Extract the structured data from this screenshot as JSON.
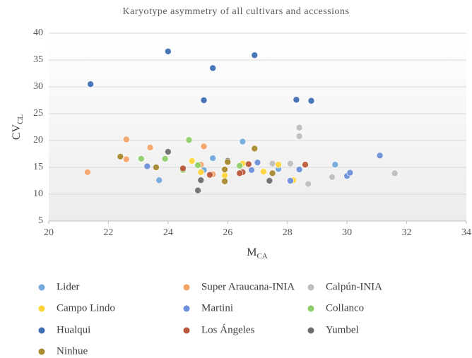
{
  "chart_data": {
    "type": "scatter",
    "title": "Karyotype asymmetry of all cultivars and accessions",
    "x_label": {
      "main": "M",
      "sub": "CA"
    },
    "y_label": {
      "main": "CV",
      "sub": "CL"
    },
    "xlim": [
      20,
      34
    ],
    "xticks": [
      20,
      22,
      24,
      26,
      28,
      30,
      32,
      34
    ],
    "ylim": [
      5,
      40
    ],
    "yticks": [
      5,
      10,
      15,
      20,
      25,
      30,
      35,
      40
    ],
    "grid": true,
    "legend": "bottom",
    "series": [
      {
        "name": "Lider",
        "color": "#73a9dc",
        "x": [
          23.7,
          25.5,
          26.5,
          27.7,
          29.6,
          25.2
        ],
        "values": [
          12.6,
          16.7,
          19.8,
          14.7,
          15.5,
          14.5
        ]
      },
      {
        "name": "Super Araucana-INIA",
        "color": "#f4a46a",
        "x": [
          21.3,
          22.6,
          22.6,
          23.4,
          25.2,
          25.1,
          25.5
        ],
        "values": [
          14.1,
          20.2,
          16.5,
          18.7,
          18.9,
          15.5,
          13.7
        ]
      },
      {
        "name": "Calpún-INIA",
        "color": "#bdbdbd",
        "x": [
          28.4,
          28.4,
          28.1,
          28.7,
          29.5,
          31.6,
          27.5
        ],
        "values": [
          22.4,
          20.8,
          15.7,
          11.9,
          13.2,
          13.9,
          15.7
        ]
      },
      {
        "name": "Campo Lindo",
        "color": "#ffd43b",
        "x": [
          24.8,
          25.1,
          25.9,
          26.5,
          27.2,
          27.7,
          28.2
        ],
        "values": [
          16.2,
          14.1,
          13.5,
          15.7,
          14.2,
          15.5,
          12.6
        ]
      },
      {
        "name": "Martini",
        "color": "#6d8fd8",
        "x": [
          23.3,
          26.8,
          27.0,
          28.1,
          28.4,
          30.0,
          30.1,
          31.1
        ],
        "values": [
          15.2,
          14.5,
          15.9,
          12.5,
          14.6,
          13.4,
          14.0,
          17.2
        ]
      },
      {
        "name": "Collanco",
        "color": "#8fcf6a",
        "x": [
          23.1,
          23.9,
          24.7,
          24.5,
          25.0,
          26.4
        ],
        "values": [
          16.6,
          16.6,
          20.1,
          14.5,
          15.4,
          15.3
        ]
      },
      {
        "name": "Hualqui",
        "color": "#3f6fb3",
        "x": [
          21.4,
          24.0,
          25.5,
          25.2,
          26.9,
          28.3,
          28.8
        ],
        "values": [
          30.5,
          36.6,
          33.5,
          27.5,
          35.9,
          27.6,
          27.4
        ]
      },
      {
        "name": "Los Ángeles",
        "color": "#b9573a",
        "x": [
          24.5,
          25.4,
          26.5,
          26.7,
          28.6,
          26.4
        ],
        "values": [
          14.8,
          13.6,
          14.1,
          15.6,
          15.5,
          13.9
        ]
      },
      {
        "name": "Yumbel",
        "color": "#6e6e6e",
        "x": [
          24.0,
          25.0,
          25.1,
          26.0,
          27.4
        ],
        "values": [
          17.9,
          10.7,
          12.6,
          16.2,
          12.5
        ]
      },
      {
        "name": "Ninhue",
        "color": "#a88a2e",
        "x": [
          22.4,
          23.6,
          25.9,
          25.9,
          26.0,
          26.9,
          27.5
        ],
        "values": [
          17.0,
          15.0,
          14.6,
          12.4,
          16.0,
          18.5,
          13.9
        ]
      }
    ]
  }
}
